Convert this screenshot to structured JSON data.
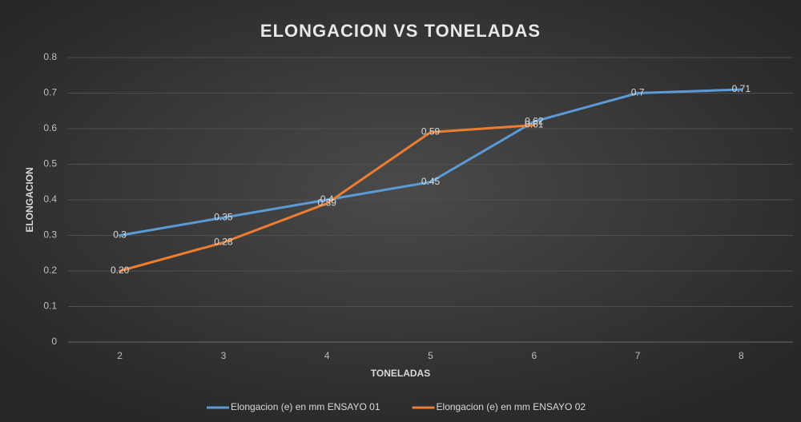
{
  "chart_data": {
    "type": "line",
    "title": "ELONGACION VS TONELADAS",
    "x_label": "TONELADAS",
    "y_label": "ELONGACION",
    "categories": [
      "2",
      "3",
      "4",
      "5",
      "6",
      "7",
      "8"
    ],
    "series": [
      {
        "name": "Elongacion (e) en mm ENSAYO 01",
        "color": "#5b9bd5",
        "values": [
          0.3,
          0.35,
          0.4,
          0.45,
          0.62,
          0.7,
          0.71
        ]
      },
      {
        "name": "Elongacion (e) en mm ENSAYO 02",
        "color": "#ed7d31",
        "values": [
          0.2,
          0.28,
          0.39,
          0.59,
          0.61,
          null,
          null
        ],
        "value_labels": [
          "0.20",
          "0.28",
          "0.39",
          "0.59",
          "0.61",
          null,
          null
        ]
      }
    ],
    "ylim": [
      0,
      0.8
    ],
    "yticks": [
      0,
      0.1,
      0.2,
      0.3,
      0.4,
      0.5,
      0.6,
      0.7,
      0.8
    ],
    "grid": true,
    "legend": "bottom"
  }
}
